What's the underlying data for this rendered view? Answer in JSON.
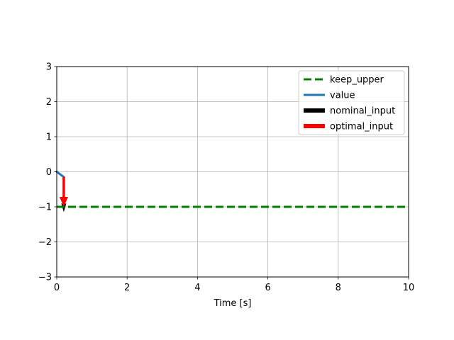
{
  "chart_data": {
    "type": "line",
    "title": "",
    "xlabel": "Time [s]",
    "ylabel": "",
    "xlim": [
      0,
      10
    ],
    "ylim": [
      -3,
      3
    ],
    "xticks": [
      0,
      2,
      4,
      6,
      8,
      10
    ],
    "yticks": [
      -3,
      -2,
      -1,
      0,
      1,
      2,
      3
    ],
    "xtick_labels": [
      "0",
      "2",
      "4",
      "6",
      "8",
      "10"
    ],
    "ytick_labels": [
      "−3",
      "−2",
      "−1",
      "0",
      "1",
      "2",
      "3"
    ],
    "grid": true,
    "legend_position": "top-right",
    "series": [
      {
        "name": "keep_upper",
        "style": "dashed-line",
        "color": "#008000",
        "x": [
          0,
          10
        ],
        "y": [
          -1,
          -1
        ]
      },
      {
        "name": "value",
        "style": "line",
        "color": "#1f77b4",
        "x": [
          0,
          0.2
        ],
        "y": [
          0,
          -0.15
        ]
      },
      {
        "name": "nominal_input",
        "style": "arrow",
        "color": "#000000",
        "x": [
          0.2,
          0.2
        ],
        "y": [
          -0.15,
          -1.15
        ]
      },
      {
        "name": "optimal_input",
        "style": "arrow",
        "color": "#ff0000",
        "x": [
          0.2,
          0.2
        ],
        "y": [
          -0.15,
          -1.0
        ]
      }
    ]
  }
}
